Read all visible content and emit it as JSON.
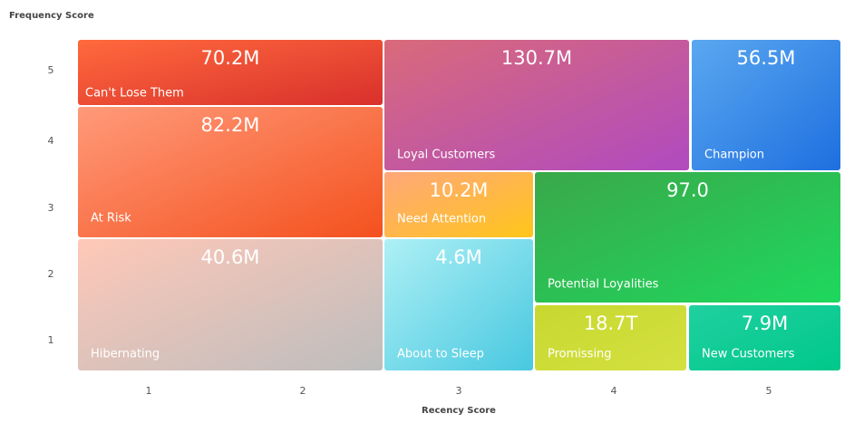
{
  "chart_data": {
    "type": "segment",
    "y_axis_label": "Frequency Score",
    "x_axis_label": "Recency Score",
    "xticks": [
      1,
      2,
      3,
      4,
      5
    ],
    "yticks": [
      5,
      4,
      3,
      2,
      1
    ],
    "segments": [
      {
        "name": "Can't Lose Them",
        "value": "70.2M"
      },
      {
        "name": "At Risk",
        "value": "82.2M"
      },
      {
        "name": "Hibernating",
        "value": "40.6M"
      },
      {
        "name": "Loyal Customers",
        "value": "130.7M"
      },
      {
        "name": "Champion",
        "value": "56.5M"
      },
      {
        "name": "Need Attention",
        "value": "10.2M"
      },
      {
        "name": "Potential Loyalities",
        "value": "97.0"
      },
      {
        "name": "About to Sleep",
        "value": "4.6M"
      },
      {
        "name": "Promissing",
        "value": "18.7T"
      },
      {
        "name": "New Customers",
        "value": "7.9M"
      }
    ]
  }
}
